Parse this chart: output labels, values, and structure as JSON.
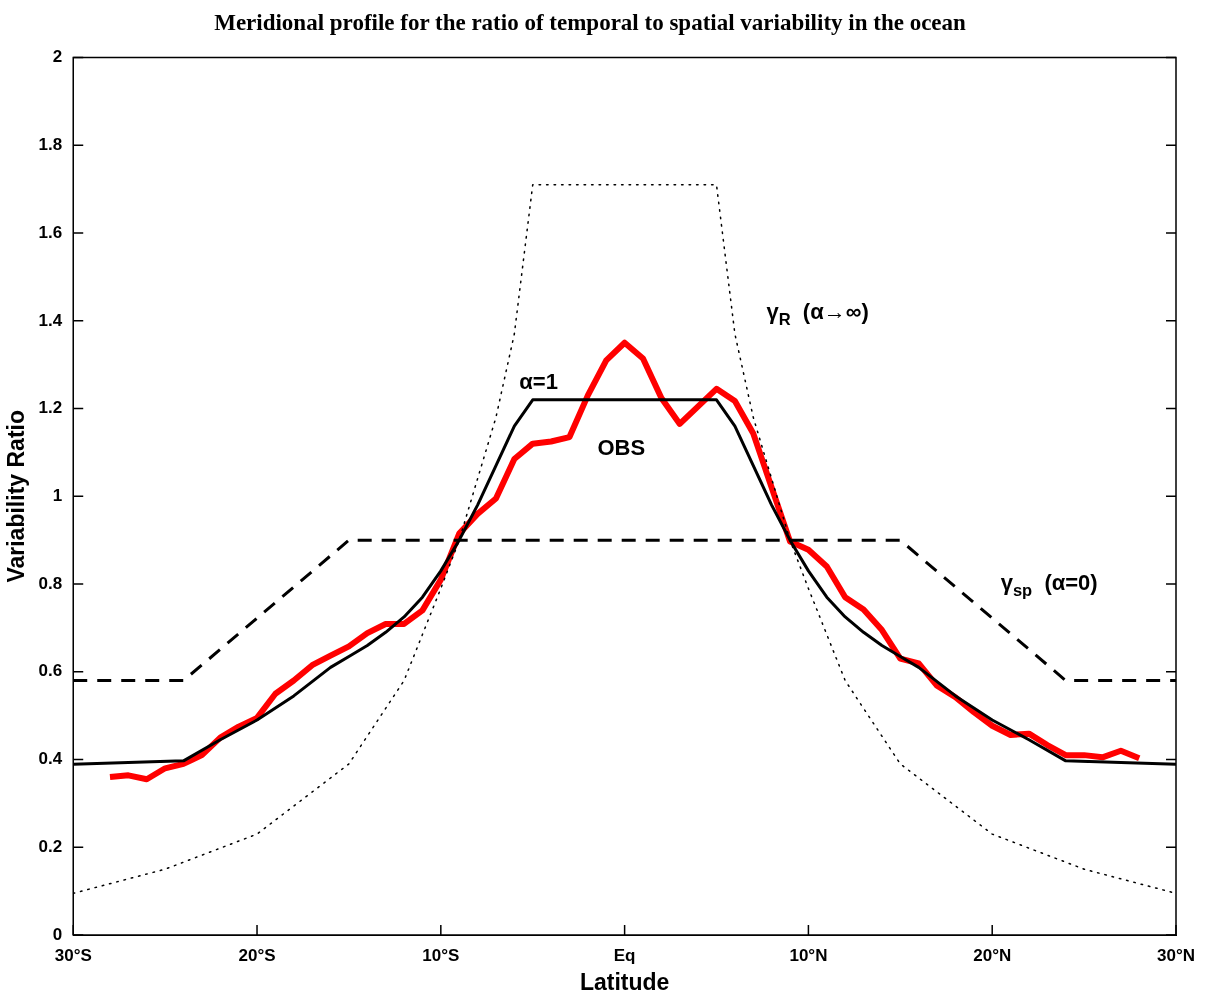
{
  "chart_data": {
    "type": "line",
    "title": "Meridional profile for the ratio of temporal to spatial variability in the ocean",
    "xlabel": "Latitude",
    "ylabel": "Variability Ratio",
    "xlim": [
      -30,
      30
    ],
    "xticks": [
      {
        "value": -30,
        "label": "30°S"
      },
      {
        "value": -20,
        "label": "20°S"
      },
      {
        "value": -10,
        "label": "10°S"
      },
      {
        "value": 0,
        "label": "Eq"
      },
      {
        "value": 10,
        "label": "10°N"
      },
      {
        "value": 20,
        "label": "20°N"
      },
      {
        "value": 30,
        "label": "30°N"
      }
    ],
    "ylim": [
      0,
      2
    ],
    "yticks": [
      0,
      0.2,
      0.4,
      0.6,
      0.8,
      1,
      1.2,
      1.4,
      1.6,
      1.8,
      2
    ],
    "grid": false,
    "legend": false,
    "marker": "none",
    "series": [
      {
        "name": "γ$_{R}$  (α→∞)",
        "color": "#000000",
        "line_style": "dotted",
        "x": [
          -30,
          -25,
          -20,
          -15,
          -12,
          -10,
          -9,
          -8,
          -7,
          -6,
          -5,
          5,
          6,
          7,
          8,
          9,
          10,
          12,
          15,
          20,
          25,
          30
        ],
        "values": [
          0.095,
          0.15,
          0.23,
          0.39,
          0.58,
          0.79,
          0.9,
          1.04,
          1.18,
          1.37,
          1.71,
          1.71,
          1.37,
          1.18,
          1.04,
          0.9,
          0.79,
          0.58,
          0.39,
          0.23,
          0.15,
          0.095
        ]
      },
      {
        "name": "γ$_{sp}$  (α=0)",
        "color": "#000000",
        "line_style": "dashed",
        "x": [
          -30,
          -24,
          -15,
          15,
          24,
          30
        ],
        "values": [
          0.58,
          0.58,
          0.9,
          0.9,
          0.58,
          0.58
        ]
      },
      {
        "name": "α=1",
        "color": "#000000",
        "line_style": "solid",
        "x": [
          -30,
          -24,
          -22,
          -20,
          -18,
          -16,
          -15,
          -14,
          -13,
          -12,
          -11,
          -10,
          -9,
          -8,
          -7,
          -6,
          -5,
          5,
          6,
          7,
          8,
          9,
          10,
          11,
          12,
          13,
          14,
          15,
          16,
          18,
          20,
          22,
          24,
          30
        ],
        "values": [
          0.389,
          0.397,
          0.445,
          0.49,
          0.545,
          0.61,
          0.635,
          0.66,
          0.69,
          0.725,
          0.77,
          0.83,
          0.9,
          0.98,
          1.07,
          1.16,
          1.22,
          1.22,
          1.16,
          1.07,
          0.98,
          0.9,
          0.83,
          0.77,
          0.725,
          0.69,
          0.66,
          0.635,
          0.61,
          0.545,
          0.49,
          0.445,
          0.397,
          0.389
        ]
      },
      {
        "name": "OBS",
        "color": "#ff0000",
        "line_style": "solid",
        "x": [
          -28,
          -27,
          -26,
          -25,
          -24,
          -23,
          -22,
          -21,
          -20,
          -19,
          -18,
          -17,
          -16,
          -15,
          -14,
          -13,
          -12,
          -11,
          -10,
          -9,
          -8,
          -7,
          -6,
          -5,
          -4,
          -3,
          -2,
          -1,
          0,
          1,
          2,
          3,
          4,
          5,
          6,
          7,
          8,
          9,
          10,
          11,
          12,
          13,
          14,
          15,
          16,
          17,
          18,
          19,
          20,
          21,
          22,
          23,
          24,
          25,
          26,
          27,
          28
        ],
        "values": [
          0.36,
          0.364,
          0.355,
          0.38,
          0.39,
          0.41,
          0.45,
          0.475,
          0.495,
          0.55,
          0.58,
          0.615,
          0.637,
          0.658,
          0.688,
          0.709,
          0.709,
          0.74,
          0.81,
          0.915,
          0.96,
          0.995,
          1.085,
          1.12,
          1.125,
          1.135,
          1.23,
          1.31,
          1.35,
          1.314,
          1.224,
          1.165,
          1.205,
          1.245,
          1.217,
          1.143,
          1.02,
          0.897,
          0.878,
          0.84,
          0.77,
          0.742,
          0.695,
          0.63,
          0.619,
          0.568,
          0.542,
          0.508,
          0.477,
          0.456,
          0.459,
          0.433,
          0.41,
          0.41,
          0.405,
          0.42,
          0.403
        ]
      }
    ]
  }
}
